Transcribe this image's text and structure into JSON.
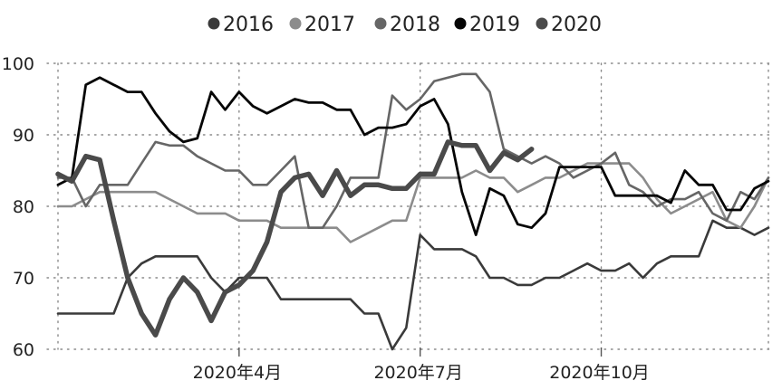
{
  "chart_data": {
    "type": "line",
    "title": "",
    "xlabel": "",
    "ylabel": "",
    "ylim": [
      60,
      100
    ],
    "yticks": [
      60,
      70,
      80,
      90,
      100
    ],
    "ytick_labels": [
      "60",
      "70",
      "80",
      "90",
      "100"
    ],
    "xtick_labels": [
      "2020年4月",
      "2020年7月",
      "2020年10月"
    ],
    "grid": "dotted",
    "legend_position": "top",
    "series": [
      {
        "name": "2016",
        "color": "#3a3a3a",
        "width": 2.6,
        "values": [
          65,
          65,
          65,
          65,
          65,
          70,
          72,
          73,
          73,
          73,
          73,
          70,
          68,
          70,
          70,
          70,
          67,
          67,
          67,
          67,
          67,
          67,
          65,
          65,
          60,
          63,
          76,
          74,
          74,
          74,
          73,
          70,
          70,
          69,
          69,
          70,
          70,
          71,
          72,
          71,
          71,
          72,
          70,
          72,
          73,
          73,
          73,
          78,
          77,
          77,
          76,
          77
        ]
      },
      {
        "name": "2017",
        "color": "#8c8c8c",
        "width": 2.6,
        "values": [
          80,
          80,
          81,
          82,
          82,
          82,
          82,
          82,
          81,
          80,
          79,
          79,
          79,
          78,
          78,
          78,
          77,
          77,
          77,
          77,
          77,
          75,
          76,
          77,
          78,
          78,
          84,
          84,
          84,
          84,
          85,
          84,
          84,
          82,
          83,
          84,
          84,
          85,
          86,
          86,
          86,
          86,
          84,
          81,
          79,
          80,
          81,
          82,
          78,
          77,
          80,
          84
        ]
      },
      {
        "name": "2018",
        "color": "#666666",
        "width": 2.6,
        "values": [
          84,
          84,
          80,
          83,
          83,
          83,
          86,
          89,
          88.5,
          88.5,
          87,
          86,
          85,
          85,
          83,
          83,
          85,
          87,
          77,
          77,
          80,
          84,
          84,
          84,
          95.5,
          93.5,
          95,
          97.5,
          98,
          98.5,
          98.5,
          96,
          88,
          87,
          86,
          87,
          86,
          84,
          85,
          86,
          87.5,
          83,
          82,
          80,
          81,
          81,
          82,
          79,
          78,
          82,
          81,
          84
        ]
      },
      {
        "name": "2019",
        "color": "#050505",
        "width": 2.8,
        "values": [
          83,
          84,
          97,
          98,
          97,
          96,
          96,
          93,
          90.5,
          89,
          89.5,
          96,
          93.5,
          96,
          94,
          93,
          94,
          95,
          94.5,
          94.5,
          93.5,
          93.5,
          90,
          91,
          91,
          91.5,
          94,
          95,
          91.5,
          82,
          76,
          82.5,
          81.5,
          77.5,
          77,
          79,
          85.5,
          85.5,
          85.5,
          85.5,
          81.5,
          81.5,
          81.5,
          81.5,
          80.5,
          85,
          83,
          83,
          79.5,
          79.5,
          82.5,
          83.5
        ]
      },
      {
        "name": "2020",
        "color": "#4a4a4a",
        "width": 5.5,
        "values": [
          84.5,
          83.5,
          87,
          86.5,
          78,
          70,
          65,
          62,
          67,
          70,
          68,
          64,
          68,
          69,
          71,
          75,
          82,
          84,
          84.5,
          81.5,
          85,
          81.5,
          83,
          83,
          82.5,
          82.5,
          84.5,
          84.5,
          89,
          88.5,
          88.5,
          85,
          87.5,
          86.5,
          88
        ]
      }
    ]
  }
}
